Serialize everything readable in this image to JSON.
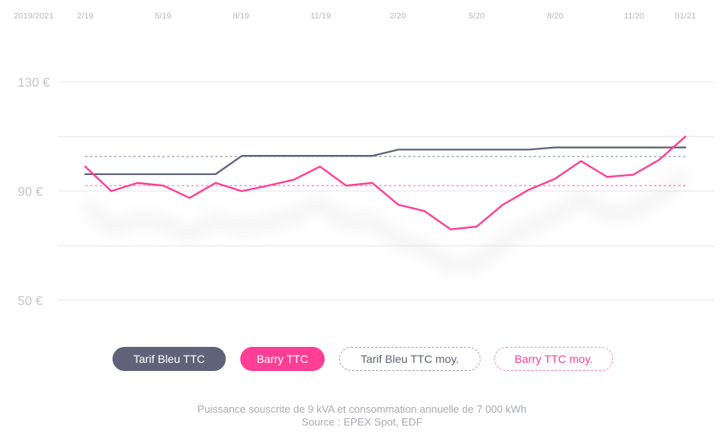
{
  "chart_data": {
    "type": "line",
    "x_labels": [
      "2019/2021",
      "2/19",
      "5/19",
      "8/19",
      "11/19",
      "2/20",
      "5/20",
      "8/20",
      "11/20",
      "01/21"
    ],
    "y_tick_labels": [
      "130 €",
      "90 €",
      "50 €"
    ],
    "y_ticks": [
      130,
      90,
      50
    ],
    "ylim": [
      50,
      130
    ],
    "series": [
      {
        "name": "Tarif Bleu TTC",
        "color": "#5f6279",
        "style": "solid",
        "values": [
          96.2,
          96.2,
          96.2,
          96.2,
          96.2,
          96.2,
          102.9,
          102.9,
          102.9,
          102.9,
          102.9,
          102.9,
          105.2,
          105.2,
          105.2,
          105.2,
          105.2,
          105.2,
          106.0,
          106.0,
          106.0,
          106.0,
          106.0,
          106.0
        ]
      },
      {
        "name": "Barry TTC",
        "color": "#ff3e95",
        "style": "solid",
        "values": [
          99.0,
          90.0,
          93.0,
          92.0,
          87.5,
          93.0,
          90.0,
          92.0,
          94.2,
          99.0,
          92.0,
          93.0,
          85.0,
          82.7,
          76.0,
          77.0,
          85.0,
          90.5,
          94.5,
          101.0,
          95.2,
          96.0,
          101.5,
          110.0
        ]
      },
      {
        "name": "Tarif Bleu TTC moy.",
        "color": "#a4a6b4",
        "style": "dashed",
        "values": [
          102.7
        ]
      },
      {
        "name": "Barry TTC moy.",
        "color": "#ff8cc0",
        "style": "dashed",
        "values": [
          92.0
        ]
      }
    ],
    "grid": true,
    "legend_placement": "bottom"
  },
  "legend": {
    "tarif_bleu": "Tarif Bleu TTC",
    "barry": "Barry TTC",
    "tarif_bleu_moy": "Tarif Bleu TTC moy.",
    "barry_moy": "Barry TTC moy."
  },
  "footer": {
    "line1": "Puissance souscrite de 9 kVA et consommation annuelle de 7 000 kWh",
    "line2": "Source : EPEX Spot, EDF"
  }
}
